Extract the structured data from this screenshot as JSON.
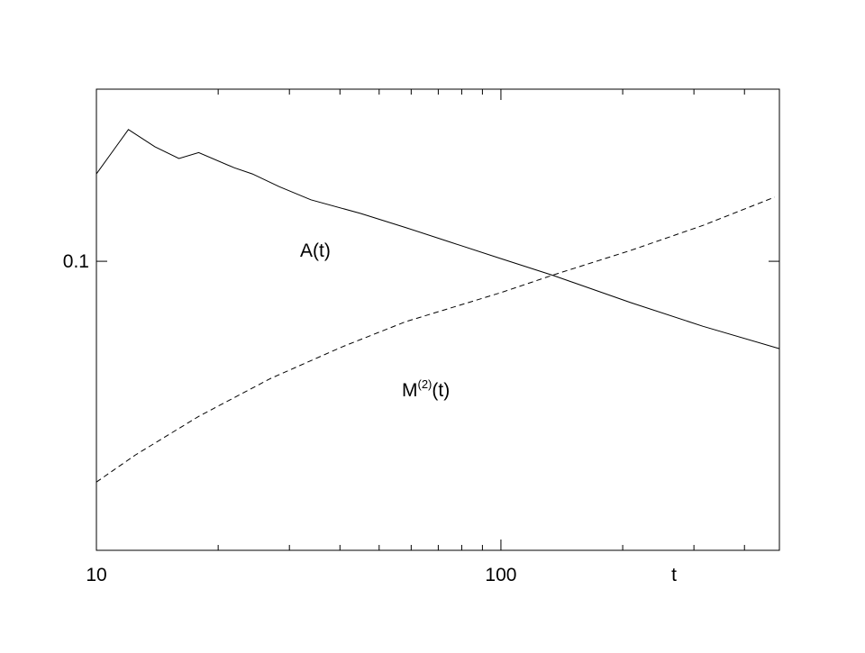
{
  "chart_data": {
    "type": "line",
    "xlabel": "t",
    "log_x": true,
    "log_y": true,
    "xlim": [
      10,
      488
    ],
    "ylim": [
      0.0478,
      0.1552
    ],
    "xticks": [
      10,
      100
    ],
    "xminorticks": [
      20,
      30,
      40,
      50,
      60,
      70,
      80,
      90,
      200,
      300,
      400
    ],
    "yticks": [
      0.1
    ],
    "series": [
      {
        "name": "A(t)",
        "color": "#000000",
        "dash": false,
        "x": [
          10,
          12.0,
          13.95,
          16.0,
          17.9,
          21.9,
          24.3,
          28.3,
          33.9,
          45.0,
          58.1,
          75.0,
          100,
          135,
          209,
          316,
          488
        ],
        "values": [
          0.125,
          0.14,
          0.134,
          0.13,
          0.132,
          0.127,
          0.125,
          0.121,
          0.117,
          0.113,
          0.109,
          0.105,
          0.1007,
          0.0964,
          0.09,
          0.0847,
          0.08
        ]
      },
      {
        "name": [
          "M",
          "(2)",
          "(t)"
        ],
        "color": "#000000",
        "dash": true,
        "x": [
          10,
          12.5,
          17.9,
          26.9,
          40.6,
          58.1,
          100,
          135,
          209,
          316,
          475
        ],
        "values": [
          0.0569,
          0.061,
          0.0673,
          0.0741,
          0.0804,
          0.0857,
          0.0923,
          0.0966,
          0.1028,
          0.1096,
          0.1178
        ]
      }
    ]
  }
}
